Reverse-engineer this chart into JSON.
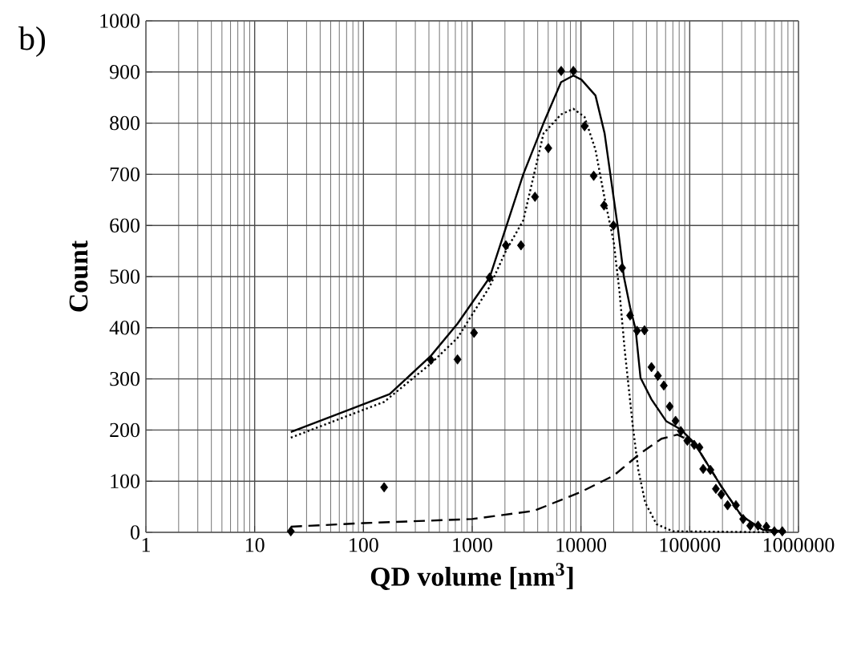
{
  "chart_data": {
    "type": "line",
    "xlabel": "QD volume [nm$^{3}$]",
    "ylabel": "Count",
    "annotations": [
      "b)"
    ],
    "log": "x",
    "grid": true,
    "xlim": [
      1,
      1000000
    ],
    "ylim": [
      0,
      1000
    ],
    "xticks": [
      1,
      10,
      100,
      1000,
      10000,
      100000,
      1000000
    ],
    "yticks": [
      0,
      100,
      200,
      300,
      400,
      500,
      600,
      700,
      800,
      900,
      1000
    ],
    "series": [
      {
        "type": "scatter",
        "marker": "diamond",
        "color": "#000000",
        "x": [
          21.5,
          155,
          417,
          733,
          1040,
          1445,
          2040,
          2810,
          3780,
          5010,
          6580,
          8520,
          10800,
          13100,
          16300,
          19900,
          23900,
          28300,
          32800,
          38400,
          44500,
          51000,
          57800,
          65500,
          74100,
          82900,
          95000,
          110000,
          123000,
          133000,
          155000,
          174000,
          195000,
          223000,
          266000,
          310000,
          360000,
          425000,
          507000,
          600000,
          710000
        ],
        "values": [
          2,
          88,
          337,
          338,
          390,
          498,
          561,
          561,
          656,
          751,
          902,
          902,
          794,
          697,
          639,
          600,
          517,
          424,
          394,
          395,
          323,
          306,
          287,
          246,
          218,
          198,
          179,
          171,
          166,
          124,
          122,
          85,
          74,
          53,
          53,
          26,
          13,
          13,
          11,
          2,
          2
        ]
      },
      {
        "line_style": "solid",
        "color": "#000000",
        "x": [
          21.5,
          174,
          417,
          733,
          1445,
          2950,
          4530,
          6560,
          8520,
          10100,
          13600,
          16500,
          21700,
          24800,
          28300,
          31800,
          35300,
          44500,
          61000,
          83000,
          110000,
          195000,
          300000,
          470000,
          760000
        ],
        "values": [
          196,
          270,
          345,
          408,
          498,
          700,
          800,
          880,
          893,
          885,
          854,
          780,
          600,
          500,
          440,
          397,
          302,
          260,
          217,
          201,
          175,
          90,
          32,
          5,
          2
        ]
      },
      {
        "line_style": "dotted",
        "color": "#000000",
        "x": [
          21.5,
          155,
          417,
          733,
          1445,
          2040,
          2950,
          4530,
          6560,
          8520,
          10800,
          13600,
          16500,
          20000,
          22600,
          25300,
          30000,
          33700,
          39000,
          49500,
          70000,
          760000
        ],
        "values": [
          185,
          255,
          330,
          380,
          480,
          550,
          610,
          780,
          817,
          828,
          812,
          748,
          653,
          568,
          471,
          355,
          207,
          122,
          58,
          16,
          2,
          0
        ]
      },
      {
        "line_style": "dashed",
        "color": "#000000",
        "x": [
          21.5,
          100,
          1000,
          3700,
          10000,
          20000,
          35000,
          55000,
          77000,
          110000,
          195000,
          300000,
          470000,
          760000
        ],
        "values": [
          11,
          18,
          26,
          42,
          79,
          111,
          154,
          183,
          191,
          175,
          90,
          32,
          5,
          2
        ]
      }
    ]
  }
}
